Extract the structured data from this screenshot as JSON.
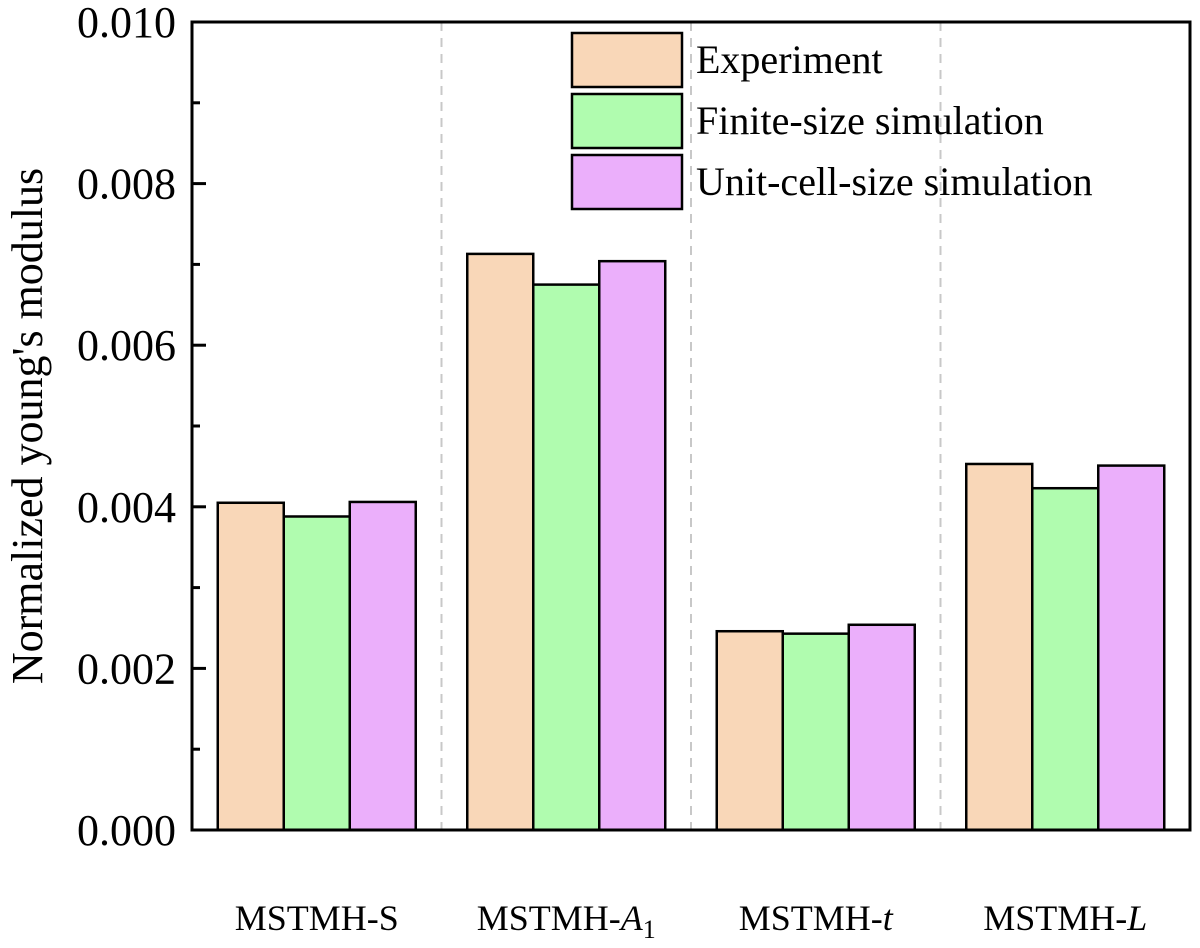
{
  "chart_data": {
    "type": "bar",
    "categories": [
      {
        "label": "MSTMH-S",
        "prefix": "MSTMH-S",
        "italic": "",
        "sub": ""
      },
      {
        "label": "MSTMH-A1",
        "prefix": "MSTMH-",
        "italic": "A",
        "sub": "1"
      },
      {
        "label": "MSTMH-t",
        "prefix": "MSTMH-",
        "italic": "t",
        "sub": ""
      },
      {
        "label": "MSTMH-L",
        "prefix": "MSTMH-",
        "italic": "L",
        "sub": ""
      }
    ],
    "series": [
      {
        "name": "Experiment",
        "color": "#f9d7b8",
        "values": [
          0.00405,
          0.00713,
          0.00246,
          0.00453
        ]
      },
      {
        "name": "Finite-size simulation",
        "color": "#b0fcaf",
        "values": [
          0.00388,
          0.00675,
          0.00243,
          0.00423
        ]
      },
      {
        "name": "Unit-cell-size simulation",
        "color": "#ebaffb",
        "values": [
          0.00406,
          0.00704,
          0.00254,
          0.00451
        ]
      }
    ],
    "ylabel": "Normalized young's modulus",
    "xlabel": "",
    "ylim": [
      0,
      0.01
    ],
    "yticks": [
      "0.000",
      "0.002",
      "0.004",
      "0.006",
      "0.008",
      "0.010"
    ],
    "ytick_values": [
      0,
      0.002,
      0.004,
      0.006,
      0.008,
      0.01
    ],
    "legend_position": "top-right",
    "grid": false,
    "category_separators": true
  }
}
